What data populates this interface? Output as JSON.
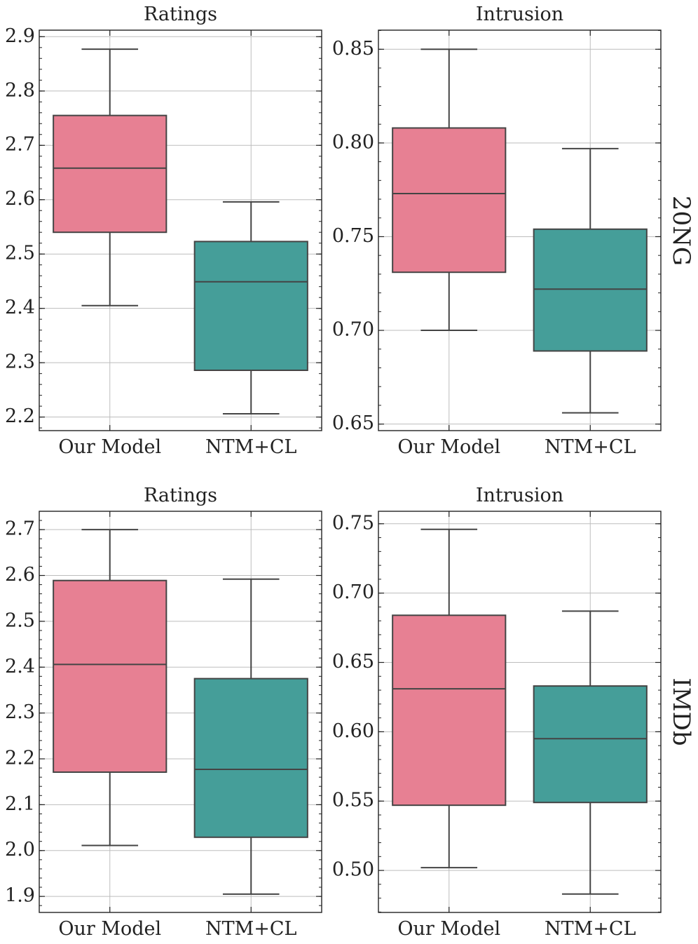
{
  "figure": {
    "row_labels": [
      "20NG",
      "IMDb"
    ],
    "colors": {
      "Our Model": "#e78093",
      "NTM+CL": "#459e99",
      "stroke": "#444444",
      "grid": "#bdbdbd"
    }
  },
  "chart_data": [
    {
      "type": "box",
      "title": "Ratings",
      "dataset": "20NG",
      "categories": [
        "Our Model",
        "NTM+CL"
      ],
      "ylim": [
        2.175,
        2.912
      ],
      "yticks": [
        "2.2",
        "2.3",
        "2.4",
        "2.5",
        "2.6",
        "2.7",
        "2.8",
        "2.9"
      ],
      "boxes": [
        {
          "name": "Our Model",
          "min": 2.405,
          "q1": 2.54,
          "median": 2.658,
          "q3": 2.755,
          "max": 2.877
        },
        {
          "name": "NTM+CL",
          "min": 2.206,
          "q1": 2.286,
          "median": 2.449,
          "q3": 2.523,
          "max": 2.596
        }
      ]
    },
    {
      "type": "box",
      "title": "Intrusion",
      "dataset": "20NG",
      "categories": [
        "Our Model",
        "NTM+CL"
      ],
      "ylim": [
        0.6465,
        0.8602
      ],
      "yticks": [
        "0.65",
        "0.70",
        "0.75",
        "0.80",
        "0.85"
      ],
      "boxes": [
        {
          "name": "Our Model",
          "min": 0.7,
          "q1": 0.731,
          "median": 0.773,
          "q3": 0.808,
          "max": 0.85
        },
        {
          "name": "NTM+CL",
          "min": 0.656,
          "q1": 0.689,
          "median": 0.722,
          "q3": 0.754,
          "max": 0.797
        }
      ]
    },
    {
      "type": "box",
      "title": "Ratings",
      "dataset": "IMDb",
      "categories": [
        "Our Model",
        "NTM+CL"
      ],
      "ylim": [
        1.865,
        2.74
      ],
      "yticks": [
        "1.9",
        "2.0",
        "2.1",
        "2.2",
        "2.3",
        "2.4",
        "2.5",
        "2.6",
        "2.7"
      ],
      "boxes": [
        {
          "name": "Our Model",
          "min": 2.011,
          "q1": 2.171,
          "median": 2.406,
          "q3": 2.589,
          "max": 2.7
        },
        {
          "name": "NTM+CL",
          "min": 1.905,
          "q1": 2.029,
          "median": 2.177,
          "q3": 2.375,
          "max": 2.592
        }
      ]
    },
    {
      "type": "box",
      "title": "Intrusion",
      "dataset": "IMDb",
      "categories": [
        "Our Model",
        "NTM+CL"
      ],
      "ylim": [
        0.4697,
        0.759
      ],
      "yticks": [
        "0.50",
        "0.55",
        "0.60",
        "0.65",
        "0.70",
        "0.75"
      ],
      "boxes": [
        {
          "name": "Our Model",
          "min": 0.502,
          "q1": 0.547,
          "median": 0.631,
          "q3": 0.684,
          "max": 0.746
        },
        {
          "name": "NTM+CL",
          "min": 0.483,
          "q1": 0.549,
          "median": 0.595,
          "q3": 0.633,
          "max": 0.687
        }
      ]
    }
  ]
}
